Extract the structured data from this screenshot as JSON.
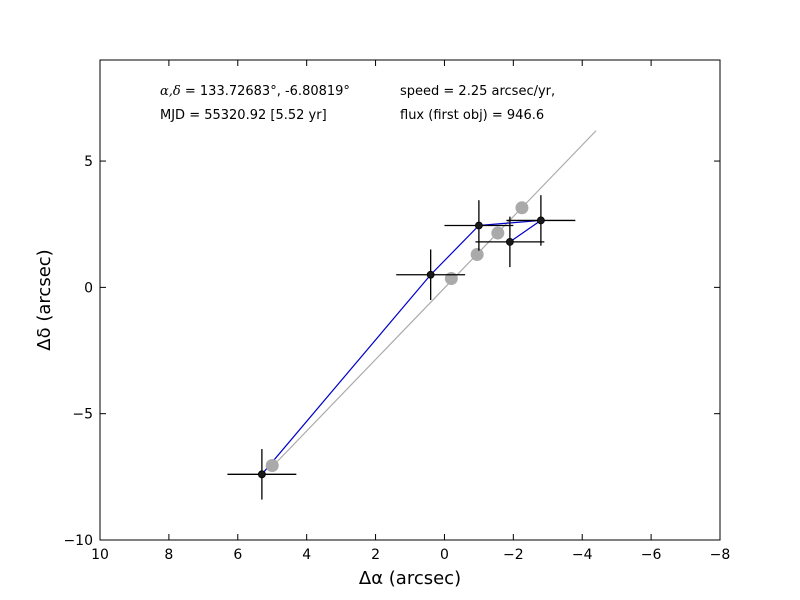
{
  "chart_data": {
    "type": "scatter",
    "xlabel": "Δα (arcsec)",
    "ylabel": "Δδ (arcsec)",
    "xlim": [
      10,
      -8
    ],
    "ylim": [
      -10,
      9
    ],
    "xticks": [
      10,
      8,
      6,
      4,
      2,
      0,
      -2,
      -4,
      -6,
      -8
    ],
    "yticks": [
      -10,
      -5,
      0,
      5
    ],
    "xtick_labels": [
      "10",
      "8",
      "6",
      "4",
      "2",
      "0",
      "−2",
      "−4",
      "−6",
      "−8"
    ],
    "ytick_labels": [
      "−10",
      "−5",
      "0",
      "5"
    ],
    "grid": false,
    "annotations": {
      "coord_label": "α,δ",
      "coord_values": " = 133.72683°, -6.80819°",
      "mjd": "MJD = 55320.92 [5.52 yr]",
      "speed": "speed = 2.25 arcsec/yr,",
      "flux": "flux (first obj) = 946.6"
    },
    "fit_line": {
      "color": "#aaaaaa",
      "x": [
        5.0,
        -4.4
      ],
      "y": [
        -7.1,
        6.2
      ]
    },
    "series": [
      {
        "kind": "observed",
        "color": "#1a1a1a",
        "line_color": "#0000cc",
        "errorbar_color": "#000000",
        "x": [
          5.3,
          0.4,
          -1.0,
          -2.8,
          -1.9
        ],
        "y": [
          -7.4,
          0.5,
          2.45,
          2.65,
          1.8
        ],
        "xerr": [
          1.0,
          1.0,
          1.0,
          1.0,
          1.0
        ],
        "yerr": [
          1.0,
          1.0,
          1.0,
          1.0,
          1.0
        ]
      },
      {
        "kind": "predicted",
        "color": "#aaaaaa",
        "x": [
          5.0,
          -0.2,
          -0.95,
          -1.55,
          -2.25
        ],
        "y": [
          -7.05,
          0.35,
          1.3,
          2.15,
          3.15
        ]
      }
    ]
  }
}
